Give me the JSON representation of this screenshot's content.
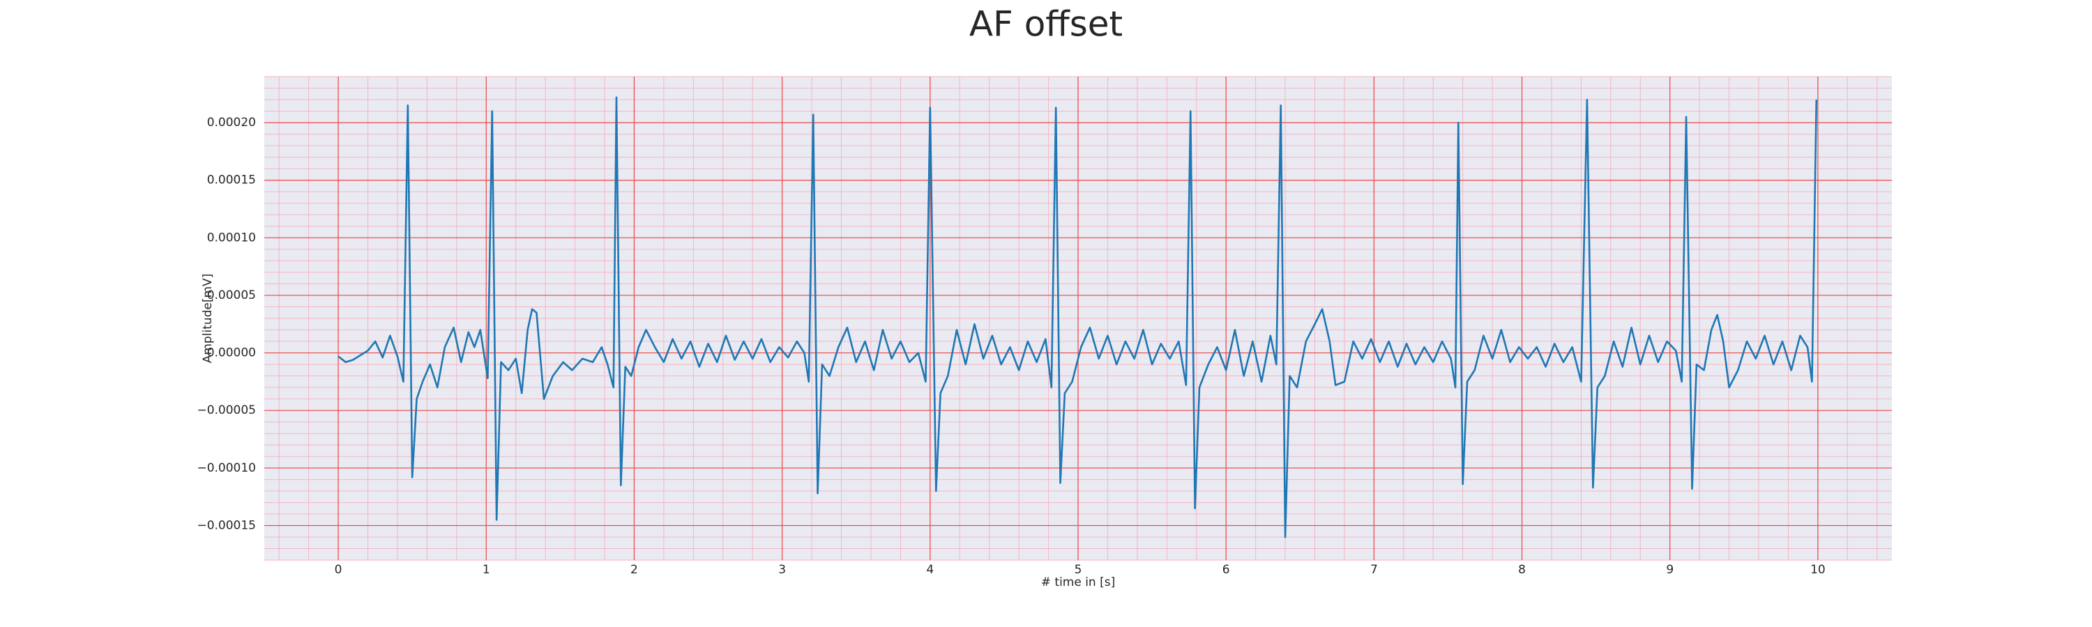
{
  "chart_data": {
    "type": "line",
    "title": "AF offset",
    "xlabel": "# time in [s]",
    "ylabel": "Amplitude[mV]",
    "color": "#1f77b4",
    "grid": true,
    "minor_grid_divisions": 5,
    "xlim": [
      -0.5,
      10.5
    ],
    "xticks": [
      0,
      1,
      2,
      3,
      4,
      5,
      6,
      7,
      8,
      9,
      10
    ],
    "ylim": [
      -0.00018,
      0.00024
    ],
    "yticks": [
      {
        "value": -0.00015,
        "label": "−0.00015"
      },
      {
        "value": -0.0001,
        "label": "−0.00010"
      },
      {
        "value": -5e-05,
        "label": "−0.00005"
      },
      {
        "value": 0,
        "label": "0.00000"
      },
      {
        "value": 5e-05,
        "label": "0.00005"
      },
      {
        "value": 0.0001,
        "label": "0.00010"
      },
      {
        "value": 0.00015,
        "label": "0.00015"
      },
      {
        "value": 0.0002,
        "label": "0.00020"
      }
    ],
    "x": [
      0,
      0.05,
      0.1,
      0.15,
      0.2,
      0.25,
      0.3,
      0.35,
      0.4,
      0.44,
      0.47,
      0.5,
      0.53,
      0.57,
      0.62,
      0.67,
      0.72,
      0.78,
      0.83,
      0.88,
      0.92,
      0.96,
      1.01,
      1.04,
      1.07,
      1.1,
      1.15,
      1.2,
      1.24,
      1.28,
      1.31,
      1.34,
      1.39,
      1.45,
      1.52,
      1.58,
      1.65,
      1.72,
      1.78,
      1.82,
      1.86,
      1.88,
      1.91,
      1.94,
      1.98,
      2.03,
      2.08,
      2.14,
      2.2,
      2.26,
      2.32,
      2.38,
      2.44,
      2.5,
      2.56,
      2.62,
      2.68,
      2.74,
      2.8,
      2.86,
      2.92,
      2.98,
      3.04,
      3.1,
      3.15,
      3.18,
      3.21,
      3.24,
      3.27,
      3.32,
      3.38,
      3.44,
      3.5,
      3.56,
      3.62,
      3.68,
      3.74,
      3.8,
      3.86,
      3.92,
      3.97,
      4,
      4.04,
      4.07,
      4.12,
      4.18,
      4.24,
      4.3,
      4.36,
      4.42,
      4.48,
      4.54,
      4.6,
      4.66,
      4.72,
      4.78,
      4.82,
      4.85,
      4.88,
      4.91,
      4.96,
      5.02,
      5.08,
      5.14,
      5.2,
      5.26,
      5.32,
      5.38,
      5.44,
      5.5,
      5.56,
      5.62,
      5.68,
      5.73,
      5.76,
      5.79,
      5.82,
      5.88,
      5.94,
      6,
      6.06,
      6.12,
      6.18,
      6.24,
      6.3,
      6.34,
      6.37,
      6.4,
      6.43,
      6.48,
      6.54,
      6.6,
      6.65,
      6.7,
      6.74,
      6.8,
      6.86,
      6.92,
      6.98,
      7.04,
      7.1,
      7.16,
      7.22,
      7.28,
      7.34,
      7.4,
      7.46,
      7.52,
      7.55,
      7.57,
      7.6,
      7.63,
      7.68,
      7.74,
      7.8,
      7.86,
      7.92,
      7.98,
      8.04,
      8.1,
      8.16,
      8.22,
      8.28,
      8.34,
      8.4,
      8.44,
      8.48,
      8.51,
      8.56,
      8.62,
      8.68,
      8.74,
      8.8,
      8.86,
      8.92,
      8.98,
      9.04,
      9.08,
      9.11,
      9.15,
      9.18,
      9.23,
      9.28,
      9.32,
      9.36,
      9.4,
      9.46,
      9.52,
      9.58,
      9.64,
      9.7,
      9.76,
      9.82,
      9.88,
      9.93,
      9.96,
      9.99
    ],
    "values": [
      -3e-06,
      -8e-06,
      -6e-06,
      -2e-06,
      2e-06,
      1e-05,
      -4e-06,
      1.5e-05,
      -3e-06,
      -2.5e-05,
      0.000215,
      -0.000108,
      -4e-05,
      -2.5e-05,
      -1e-05,
      -3e-05,
      5e-06,
      2.2e-05,
      -8e-06,
      1.8e-05,
      5e-06,
      2e-05,
      -2.2e-05,
      0.00021,
      -0.000145,
      -8e-06,
      -1.5e-05,
      -5e-06,
      -3.5e-05,
      2e-05,
      3.8e-05,
      3.5e-05,
      -4e-05,
      -2e-05,
      -8e-06,
      -1.5e-05,
      -5e-06,
      -8e-06,
      5e-06,
      -1e-05,
      -3e-05,
      0.000222,
      -0.000115,
      -1.2e-05,
      -2e-05,
      5e-06,
      2e-05,
      5e-06,
      -8e-06,
      1.2e-05,
      -5e-06,
      1e-05,
      -1.2e-05,
      8e-06,
      -8e-06,
      1.5e-05,
      -6e-06,
      1e-05,
      -5e-06,
      1.2e-05,
      -8e-06,
      5e-06,
      -4e-06,
      1e-05,
      0,
      -2.5e-05,
      0.000207,
      -0.000122,
      -1e-05,
      -2e-05,
      5e-06,
      2.2e-05,
      -8e-06,
      1e-05,
      -1.5e-05,
      2e-05,
      -5e-06,
      1e-05,
      -8e-06,
      0,
      -2.5e-05,
      0.000213,
      -0.00012,
      -3.5e-05,
      -2e-05,
      2e-05,
      -1e-05,
      2.5e-05,
      -5e-06,
      1.5e-05,
      -1e-05,
      5e-06,
      -1.5e-05,
      1e-05,
      -8e-06,
      1.2e-05,
      -3e-05,
      0.000213,
      -0.000113,
      -3.5e-05,
      -2.5e-05,
      5e-06,
      2.2e-05,
      -5e-06,
      1.5e-05,
      -1e-05,
      1e-05,
      -5e-06,
      2e-05,
      -1e-05,
      8e-06,
      -5e-06,
      1e-05,
      -2.8e-05,
      0.00021,
      -0.000135,
      -3e-05,
      -1e-05,
      5e-06,
      -1.5e-05,
      2e-05,
      -2e-05,
      1e-05,
      -2.5e-05,
      1.5e-05,
      -1e-05,
      0.000215,
      -0.00016,
      -2e-05,
      -3e-05,
      1e-05,
      2.5e-05,
      3.8e-05,
      1e-05,
      -2.8e-05,
      -2.5e-05,
      1e-05,
      -5e-06,
      1.2e-05,
      -8e-06,
      1e-05,
      -1.2e-05,
      8e-06,
      -1e-05,
      5e-06,
      -8e-06,
      1e-05,
      -5e-06,
      -3e-05,
      0.0002,
      -0.000114,
      -2.5e-05,
      -1.5e-05,
      1.5e-05,
      -5e-06,
      2e-05,
      -8e-06,
      5e-06,
      -5e-06,
      5e-06,
      -1.2e-05,
      8e-06,
      -8e-06,
      5e-06,
      -2.5e-05,
      0.00022,
      -0.000117,
      -3e-05,
      -2e-05,
      1e-05,
      -1.2e-05,
      2.2e-05,
      -1e-05,
      1.5e-05,
      -8e-06,
      1e-05,
      2e-06,
      -2.5e-05,
      0.000205,
      -0.000118,
      -1e-05,
      -1.5e-05,
      2e-05,
      3.3e-05,
      1e-05,
      -3e-05,
      -1.5e-05,
      1e-05,
      -5e-06,
      1.5e-05,
      -1e-05,
      1e-05,
      -1.5e-05,
      1.5e-05,
      5e-06,
      -2.5e-05,
      0.00022
    ]
  }
}
